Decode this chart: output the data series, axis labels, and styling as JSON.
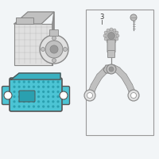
{
  "bg_color": "#f2f5f7",
  "outline": "#888888",
  "outline_dark": "#555555",
  "light_gray": "#e0e0e0",
  "med_gray": "#c0c0c0",
  "dark_gray": "#999999",
  "teal": "#4cc4d4",
  "teal_dark": "#2aa0b0",
  "teal_shadow": "#3ab0c0",
  "white": "#ffffff",
  "box_border": "#999999",
  "line_color": "#888888",
  "text_color": "#333333"
}
